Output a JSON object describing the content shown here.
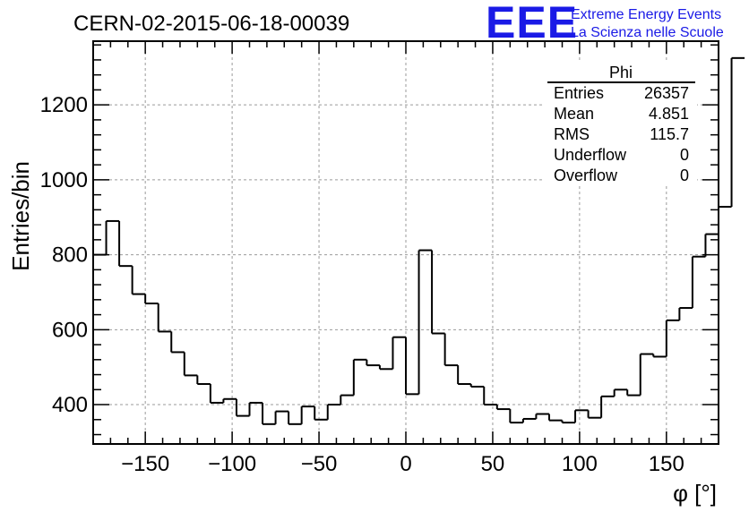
{
  "chart_data": {
    "type": "histogram",
    "title": "CERN-02-2015-06-18-00039",
    "xlabel": "φ [°]",
    "ylabel": "Entries/bin",
    "xlim": [
      -180,
      180
    ],
    "ylim": [
      295,
      1370
    ],
    "x_ticks": [
      -150,
      -100,
      -50,
      0,
      50,
      100,
      150
    ],
    "y_ticks": [
      400,
      600,
      800,
      1000,
      1200
    ],
    "grid": true,
    "bin_width": 7.5,
    "bin_edges_start": -180,
    "values": [
      800,
      890,
      770,
      695,
      670,
      595,
      540,
      478,
      455,
      405,
      415,
      370,
      405,
      348,
      382,
      348,
      395,
      360,
      400,
      425,
      520,
      505,
      495,
      580,
      428,
      812,
      590,
      505,
      455,
      448,
      400,
      388,
      352,
      362,
      375,
      358,
      352,
      385,
      365,
      422,
      440,
      425,
      535,
      528,
      625,
      658,
      795,
      855,
      928,
      1325
    ],
    "legend": {
      "header": "Phi",
      "rows": [
        {
          "label": "Entries",
          "value": "26357"
        },
        {
          "label": "Mean",
          "value": "4.851"
        },
        {
          "label": "RMS",
          "value": "115.7"
        },
        {
          "label": "Underflow",
          "value": "0"
        },
        {
          "label": "Overflow",
          "value": "0"
        }
      ],
      "placement": "top-right"
    }
  },
  "logo": {
    "mark": "EEE",
    "line1": "Extreme Energy Events",
    "line2": "La Scienza nelle Scuole"
  },
  "colors": {
    "line": "#000000",
    "grid": "#9a9a9a",
    "logo": "#1a1ae6"
  }
}
